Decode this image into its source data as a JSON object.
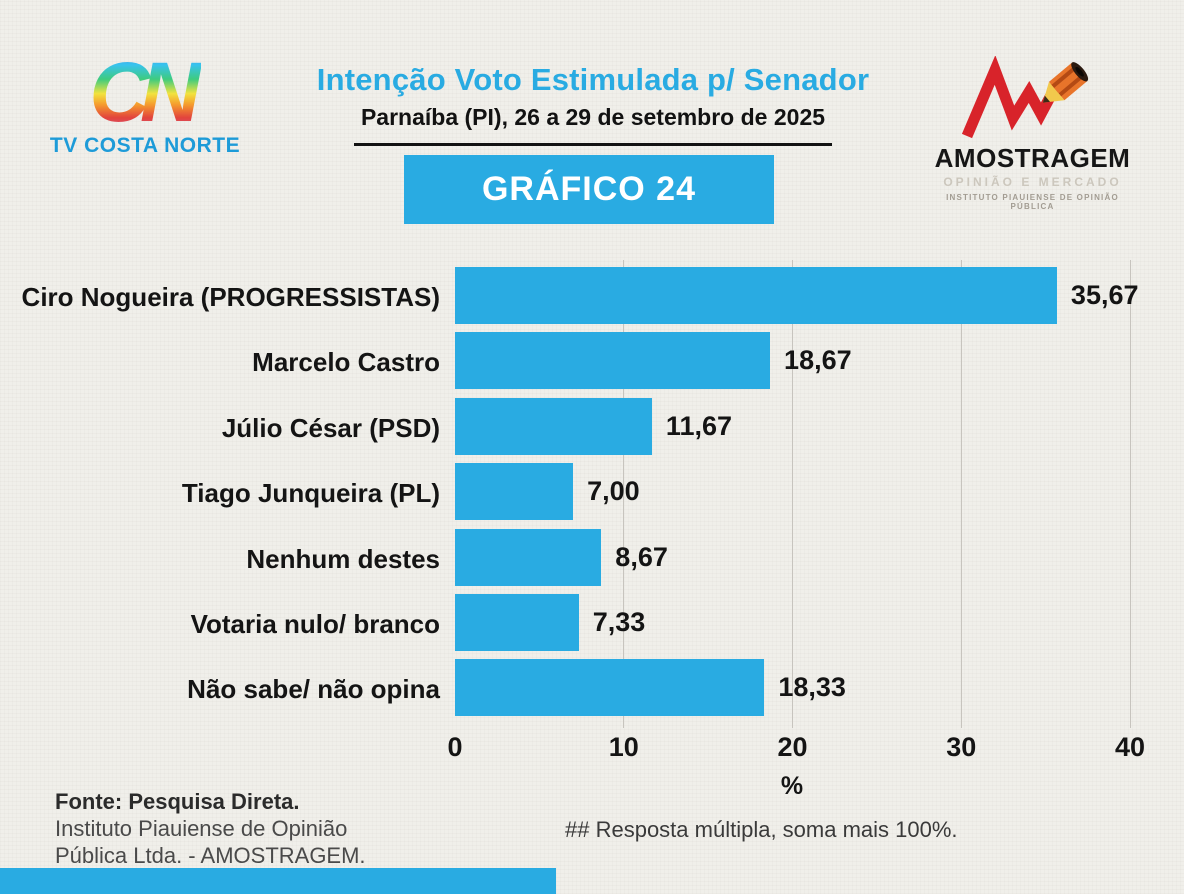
{
  "header": {
    "station_logo": {
      "monogram": "CN",
      "name": "TV COSTA NORTE"
    },
    "title": "Intenção Voto Estimulada p/ Senador",
    "subtitle": "Parnaíba (PI), 26 a 29 de setembro de 2025",
    "institute_logo": {
      "name": "AMOSTRAGEM",
      "tagline": "OPINIÃO E MERCADO",
      "subtext": "INSTITUTO PIAUIENSE DE OPINIÃO PÚBLICA"
    }
  },
  "banner": {
    "label": "GRÁFICO 24"
  },
  "chart_data": {
    "type": "bar",
    "orientation": "horizontal",
    "title": "Intenção Voto Estimulada p/ Senador",
    "subtitle": "Parnaíba (PI), 26 a 29 de setembro de 2025",
    "categories": [
      "Ciro Nogueira (PROGRESSISTAS)",
      "Marcelo Castro",
      "Júlio César (PSD)",
      "Tiago Junqueira (PL)",
      "Nenhum destes",
      "Votaria nulo/ branco",
      "Não sabe/ não opina"
    ],
    "values": [
      35.67,
      18.67,
      11.67,
      7.0,
      8.67,
      7.33,
      18.33
    ],
    "value_labels": [
      "35,67",
      "18,67",
      "11,67",
      "7,00",
      "8,67",
      "7,33",
      "18,33"
    ],
    "xlabel": "%",
    "xlim": [
      0,
      40
    ],
    "xticks": [
      0,
      10,
      20,
      30,
      40
    ],
    "grid": true,
    "legend": "none",
    "bar_color": "#29abe2"
  },
  "footer": {
    "source_bold": "Fonte: Pesquisa Direta.",
    "source_line2": "Instituto Piauiense de Opinião",
    "source_line3": "Pública Ltda. - AMOSTRAGEM.",
    "note": "## Resposta múltipla, soma mais 100%."
  },
  "colors": {
    "accent": "#29abe2",
    "background": "#f0efea",
    "station_name_blue": "#1d9bd8",
    "logo_red": "#d8232a",
    "gridline": "#c7c4be"
  }
}
